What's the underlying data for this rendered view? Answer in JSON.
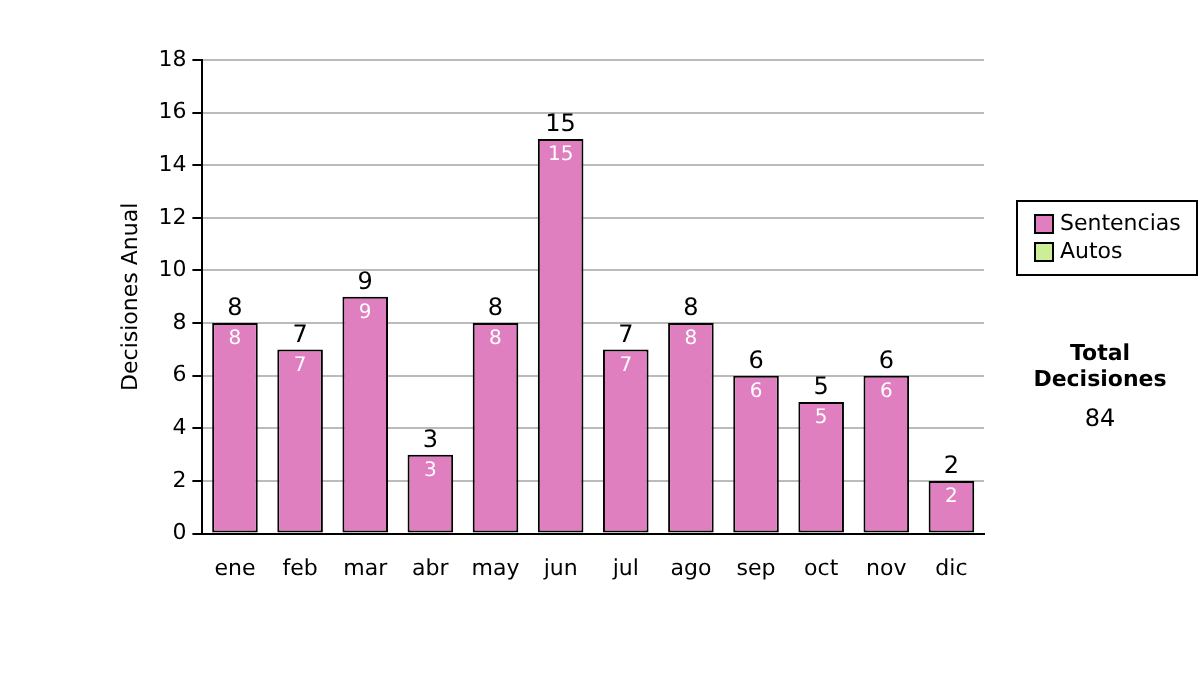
{
  "chart_data": {
    "type": "bar",
    "stacked": true,
    "ylabel": "Decisiones Anual",
    "categories": [
      "ene",
      "feb",
      "mar",
      "abr",
      "may",
      "jun",
      "jul",
      "ago",
      "sep",
      "oct",
      "nov",
      "dic"
    ],
    "series": [
      {
        "name": "Sentencias",
        "color": "#e07fc0",
        "values": [
          8,
          7,
          9,
          3,
          8,
          15,
          7,
          8,
          6,
          5,
          6,
          2
        ],
        "value_labels": [
          "8",
          "7",
          "9",
          "3",
          "8",
          "15",
          "7",
          "8",
          "6",
          "5",
          "6",
          "2"
        ]
      },
      {
        "name": "Autos",
        "color": "#ccee99",
        "values": [
          null,
          null,
          null,
          null,
          null,
          null,
          null,
          null,
          null,
          null,
          null,
          null
        ]
      }
    ],
    "totals": [
      "8",
      "7",
      "9",
      "3",
      "8",
      "15",
      "7",
      "8",
      "6",
      "5",
      "6",
      "2"
    ],
    "ylim": [
      0,
      18
    ],
    "yticks": [
      0,
      2,
      4,
      6,
      8,
      10,
      12,
      14,
      16,
      18
    ],
    "grid": "y",
    "legend": "right",
    "annotations": [
      "Total Decisiones",
      "84"
    ]
  }
}
